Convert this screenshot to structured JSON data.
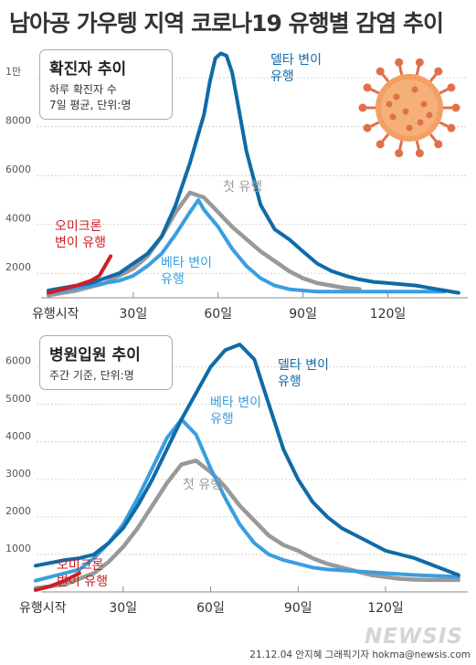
{
  "title": "남아공 가우텡 지역 코로나19 유행별 감염 추이",
  "panels": {
    "confirmed": {
      "title": "확진자 추이",
      "subtitle_1": "하루 확진자 수",
      "subtitle_2": "7일 평균, 단위:명"
    },
    "hospital": {
      "title": "병원입원 추이",
      "subtitle": "주간 기준, 단위:명"
    }
  },
  "colors": {
    "delta": "#0f6ba8",
    "beta": "#3a9ee0",
    "first": "#999999",
    "omicron": "#cc1f24",
    "virus_body": "#f2a062",
    "virus_spike": "#e0704a"
  },
  "icons": [
    "virus-icon"
  ],
  "credit": "21.12.04 안지혜 그래픽기자 hokma@newsis.com",
  "watermark": "NEWSIS",
  "chart_data": [
    {
      "type": "line",
      "title": "확진자 추이",
      "subtitle": "하루 확진자 수 7일 평균, 단위:명",
      "x_tick_labels": [
        {
          "x": 0,
          "label": "유행시작"
        },
        {
          "x": 30,
          "label": "30일"
        },
        {
          "x": 60,
          "label": "60일"
        },
        {
          "x": 90,
          "label": "90일"
        },
        {
          "x": 120,
          "label": "120일"
        }
      ],
      "y_ticks": [
        {
          "y": 2000,
          "label": "2000"
        },
        {
          "y": 4000,
          "label": "4000"
        },
        {
          "y": 6000,
          "label": "6000"
        },
        {
          "y": 8000,
          "label": "8000"
        },
        {
          "y": 10000,
          "label": "1만"
        }
      ],
      "xlim": [
        0,
        146
      ],
      "ylim": [
        1000,
        11500
      ],
      "series": [
        {
          "name": "델타 변이 유행",
          "color_key": "delta",
          "label_lines": [
            "델타 변이",
            "유행"
          ],
          "x": [
            0,
            15,
            25,
            35,
            40,
            45,
            50,
            55,
            57,
            59,
            61,
            63,
            65,
            70,
            75,
            80,
            85,
            90,
            95,
            100,
            105,
            110,
            115,
            120,
            125,
            130,
            135,
            140,
            145
          ],
          "y": [
            1300,
            1600,
            2000,
            2800,
            3500,
            4800,
            6500,
            8500,
            9800,
            10800,
            11000,
            10900,
            10200,
            7000,
            4800,
            3800,
            3400,
            2900,
            2400,
            2100,
            1900,
            1750,
            1650,
            1600,
            1550,
            1500,
            1400,
            1300,
            1200
          ]
        },
        {
          "name": "베타 변이 유행",
          "color_key": "beta",
          "label_lines": [
            "베타 변이",
            "유행"
          ],
          "x": [
            0,
            10,
            20,
            25,
            30,
            35,
            40,
            45,
            50,
            53,
            55,
            60,
            65,
            70,
            75,
            80,
            85,
            90,
            95,
            100,
            110,
            120,
            130,
            140
          ],
          "y": [
            1200,
            1400,
            1600,
            1700,
            1900,
            2300,
            2800,
            3600,
            4500,
            5000,
            4600,
            3900,
            3000,
            2300,
            1800,
            1500,
            1350,
            1300,
            1250,
            1250,
            1250,
            1250,
            1250,
            1250
          ]
        },
        {
          "name": "첫 유행",
          "color_key": "first",
          "label_lines": [
            "첫 유행"
          ],
          "x": [
            0,
            10,
            20,
            30,
            35,
            40,
            45,
            50,
            55,
            60,
            65,
            70,
            75,
            80,
            85,
            90,
            95,
            100,
            105,
            110
          ],
          "y": [
            1100,
            1300,
            1600,
            2200,
            2700,
            3500,
            4500,
            5300,
            5100,
            4500,
            3900,
            3400,
            2900,
            2500,
            2100,
            1800,
            1600,
            1500,
            1400,
            1350
          ]
        },
        {
          "name": "오미크론 변이 유행",
          "color_key": "omicron",
          "label_lines": [
            "오미크론",
            "변이 유행"
          ],
          "x": [
            0,
            5,
            10,
            15,
            18,
            20,
            22
          ],
          "y": [
            1200,
            1350,
            1500,
            1700,
            1900,
            2300,
            2700
          ]
        }
      ]
    },
    {
      "type": "line",
      "title": "병원입원 추이",
      "subtitle": "주간 기준, 단위:명",
      "x_tick_labels": [
        {
          "x": 0,
          "label": "유행시작"
        },
        {
          "x": 30,
          "label": "30일"
        },
        {
          "x": 60,
          "label": "60일"
        },
        {
          "x": 90,
          "label": "90일"
        },
        {
          "x": 120,
          "label": "120일"
        }
      ],
      "y_ticks": [
        {
          "y": 1000,
          "label": "1000"
        },
        {
          "y": 2000,
          "label": "2000"
        },
        {
          "y": 3000,
          "label": "3000"
        },
        {
          "y": 4000,
          "label": "4000"
        },
        {
          "y": 5000,
          "label": "5000"
        },
        {
          "y": 6000,
          "label": "6000"
        }
      ],
      "xlim": [
        0,
        146
      ],
      "ylim": [
        0,
        6700
      ],
      "series": [
        {
          "name": "델타 변이 유행",
          "color_key": "delta",
          "label_lines": [
            "델타 변이",
            "유행"
          ],
          "x": [
            0,
            10,
            15,
            20,
            25,
            30,
            35,
            40,
            45,
            50,
            55,
            60,
            65,
            70,
            75,
            80,
            85,
            90,
            95,
            100,
            105,
            110,
            115,
            120,
            125,
            130,
            135,
            140,
            145
          ],
          "y": [
            700,
            850,
            900,
            1000,
            1300,
            1700,
            2300,
            3000,
            3800,
            4600,
            5300,
            6000,
            6450,
            6600,
            6200,
            5000,
            3800,
            3000,
            2400,
            2000,
            1700,
            1500,
            1300,
            1100,
            1000,
            900,
            750,
            600,
            450
          ]
        },
        {
          "name": "베타 변이 유행",
          "color_key": "beta",
          "label_lines": [
            "베타 변이",
            "유행"
          ],
          "x": [
            0,
            5,
            10,
            15,
            20,
            25,
            30,
            35,
            40,
            45,
            50,
            55,
            60,
            65,
            70,
            75,
            80,
            85,
            90,
            95,
            100,
            110,
            120,
            130,
            140,
            145
          ],
          "y": [
            300,
            400,
            500,
            600,
            900,
            1300,
            1800,
            2500,
            3300,
            4100,
            4600,
            4200,
            3300,
            2500,
            1800,
            1300,
            1000,
            850,
            750,
            650,
            600,
            550,
            500,
            450,
            420,
            400
          ]
        },
        {
          "name": "첫 유행",
          "color_key": "first",
          "label_lines": [
            "첫 유행"
          ],
          "x": [
            0,
            10,
            15,
            20,
            25,
            30,
            35,
            40,
            45,
            50,
            55,
            60,
            65,
            70,
            75,
            80,
            85,
            90,
            95,
            100,
            105,
            110,
            115,
            120,
            125,
            130,
            135,
            140,
            145
          ],
          "y": [
            100,
            200,
            350,
            500,
            800,
            1200,
            1700,
            2300,
            2900,
            3400,
            3500,
            3200,
            2800,
            2300,
            1900,
            1500,
            1250,
            1100,
            900,
            750,
            650,
            550,
            450,
            400,
            350,
            330,
            320,
            320,
            320
          ]
        },
        {
          "name": "오미크론 변이 유행",
          "color_key": "omicron",
          "label_lines": [
            "오미크론",
            "변이 유행"
          ],
          "x": [
            0,
            5,
            10,
            15
          ],
          "y": [
            50,
            150,
            300,
            500
          ]
        }
      ]
    }
  ]
}
